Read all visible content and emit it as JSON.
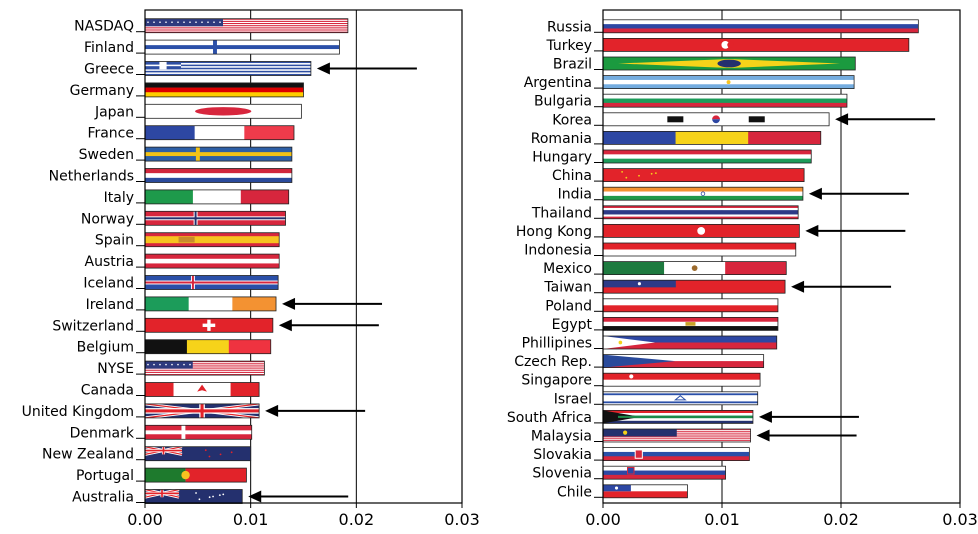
{
  "chart_data": [
    {
      "type": "bar",
      "orientation": "horizontal",
      "categories": [
        "NASDAQ",
        "Finland",
        "Greece",
        "Germany",
        "Japan",
        "France",
        "Sweden",
        "Netherlands",
        "Italy",
        "Norway",
        "Spain",
        "Austria",
        "Iceland",
        "Ireland",
        "Switzerland",
        "Belgium",
        "NYSE",
        "Canada",
        "United Kingdom",
        "Denmark",
        "New Zealand",
        "Portugal",
        "Australia"
      ],
      "values": [
        0.0192,
        0.0184,
        0.0157,
        0.015,
        0.0148,
        0.0141,
        0.0139,
        0.0139,
        0.0136,
        0.0133,
        0.0127,
        0.0127,
        0.0126,
        0.0124,
        0.0121,
        0.0119,
        0.0113,
        0.0108,
        0.0108,
        0.0101,
        0.01,
        0.0096,
        0.0092
      ],
      "flags": [
        "us",
        "finland",
        "greece",
        "germany",
        "japan",
        "france",
        "sweden",
        "netherlands",
        "italy",
        "norway",
        "spain",
        "austria",
        "iceland",
        "ireland",
        "switzerland",
        "belgium",
        "us",
        "canada",
        "uk",
        "denmark",
        "newzealand",
        "portugal",
        "australia"
      ],
      "arrows": [
        "Greece",
        "Ireland",
        "Switzerland",
        "United Kingdom",
        "Australia"
      ],
      "xlim": [
        0,
        0.03
      ],
      "xticks": [
        "0.00",
        "0.01",
        "0.02",
        "0.03"
      ],
      "grid": "vertical"
    },
    {
      "type": "bar",
      "orientation": "horizontal",
      "categories": [
        "Russia",
        "Turkey",
        "Brazil",
        "Argentina",
        "Bulgaria",
        "Korea",
        "Romania",
        "Hungary",
        "China",
        "India",
        "Thailand",
        "Hong Kong",
        "Indonesia",
        "Mexico",
        "Taiwan",
        "Poland",
        "Egypt",
        "Phillipines",
        "Czech Rep.",
        "Singapore",
        "Israel",
        "South Africa",
        "Malaysia",
        "Slovakia",
        "Slovenia",
        "Chile"
      ],
      "values": [
        0.0265,
        0.0257,
        0.0212,
        0.0211,
        0.0205,
        0.019,
        0.0183,
        0.0175,
        0.0169,
        0.0168,
        0.0164,
        0.0165,
        0.0162,
        0.0154,
        0.0153,
        0.0147,
        0.0147,
        0.0146,
        0.0135,
        0.0132,
        0.013,
        0.0126,
        0.0124,
        0.0123,
        0.0103,
        0.0071
      ],
      "flags": [
        "russia",
        "turkey",
        "brazil",
        "argentina",
        "bulgaria",
        "korea",
        "romania",
        "hungary",
        "china",
        "india",
        "thailand",
        "hongkong",
        "indonesia",
        "mexico",
        "taiwan",
        "poland",
        "egypt",
        "philippines",
        "czech",
        "singapore",
        "israel",
        "southafrica",
        "malaysia",
        "slovakia",
        "slovenia",
        "chile"
      ],
      "arrows": [
        "Korea",
        "India",
        "Hong Kong",
        "Taiwan",
        "South Africa",
        "Malaysia"
      ],
      "xlim": [
        0,
        0.03
      ],
      "xticks": [
        "0.00",
        "0.01",
        "0.02",
        "0.03"
      ],
      "grid": "vertical"
    }
  ]
}
